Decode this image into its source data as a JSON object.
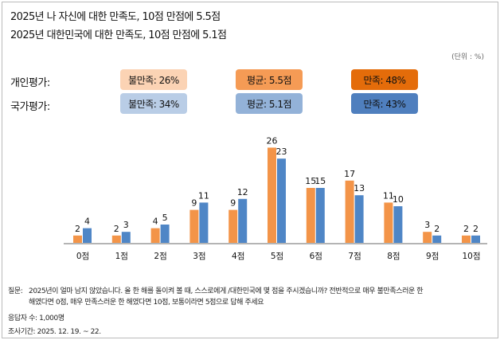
{
  "header": {
    "title1": "2025년 나 자신에 대한 만족도, 10점 만점에 5.5점",
    "title2": "2025년 대한민국에 대한 만족도, 10점 만점에 5.1점",
    "unit": "(단위 : %)"
  },
  "summary": {
    "personal": {
      "label": "개인평가:",
      "dissatisfied": "불만족: 26%",
      "average": "평균: 5.5점",
      "satisfied": "만족: 48%"
    },
    "national": {
      "label": "국가평가:",
      "dissatisfied": "불만족: 34%",
      "average": "평균: 5.1점",
      "satisfied": "만족: 43%"
    }
  },
  "colors": {
    "personal": "#f39448",
    "national": "#4f86c6",
    "personal_box": [
      "#fbd3b4",
      "#f59b55",
      "#e46c0a"
    ],
    "national_box": [
      "#b9cde6",
      "#93b2d8",
      "#4f7fbe"
    ],
    "axis": "#b4b4b4"
  },
  "chart_data": {
    "type": "bar",
    "categories": [
      "0점",
      "1점",
      "2점",
      "3점",
      "4점",
      "5점",
      "6점",
      "7점",
      "8점",
      "9점",
      "10점"
    ],
    "series": [
      {
        "values": [
          2,
          2,
          4,
          9,
          9,
          26,
          15,
          17,
          11,
          3,
          2
        ]
      },
      {
        "values": [
          4,
          3,
          5,
          11,
          12,
          23,
          15,
          13,
          10,
          2,
          2
        ]
      }
    ],
    "ylim": [
      0,
      28
    ],
    "grid": false
  },
  "footer": {
    "question_label": "질문:",
    "question_line1": "2025년이 얼마 남지 않았습니다. 올 한 해를 돌이켜 볼 때, 스스로에게 /대한민국에 몇 점을 주시겠습니까? 전반적으로 매우 불만족스러운 한",
    "question_line2": "해였다면 0점, 매우  만족스러운 한 해였다면 10점, 보통이라면 5점으로 답해 주세요",
    "respondents": "응답자 수: 1,000명",
    "period": "조사기간: 2025. 12. 19. ~ 22."
  }
}
